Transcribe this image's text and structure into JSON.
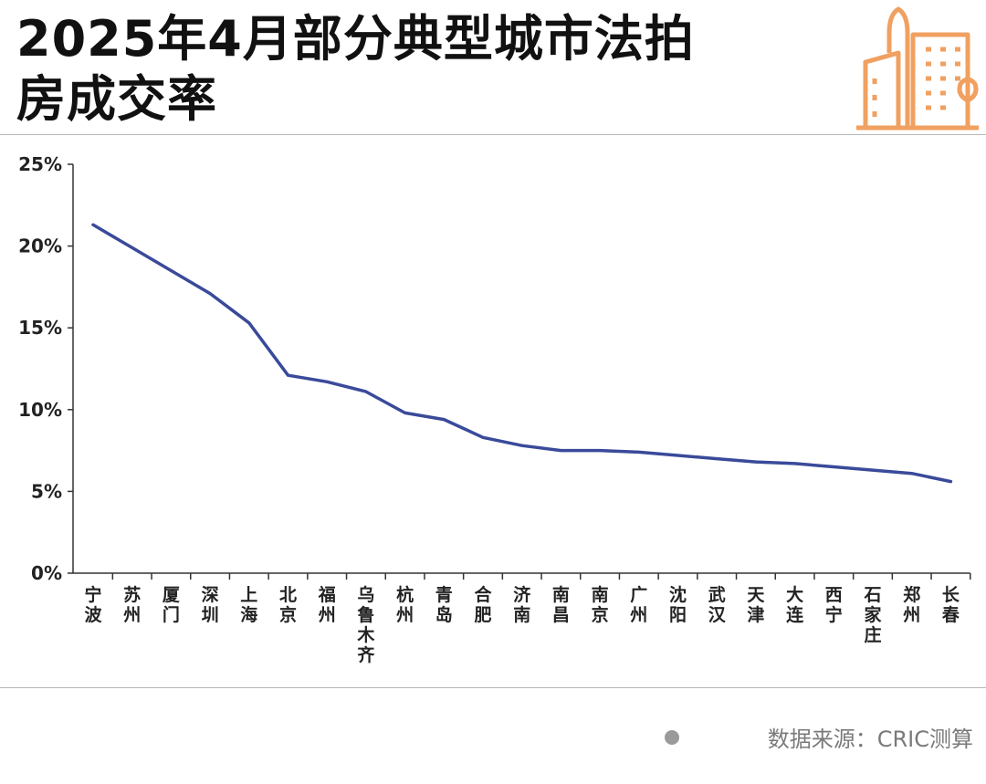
{
  "header": {
    "title_line1": "2025年4月部分典型城市法拍",
    "title_line2": "房成交率"
  },
  "logo_icon": "city-buildings-icon",
  "colors": {
    "line": "#3a4a9a",
    "logo": "#f0a060",
    "axis": "#333333"
  },
  "source": {
    "text": "数据来源：CRIC测算"
  },
  "chart_data": {
    "type": "line",
    "title": "2025年4月部分典型城市法拍房成交率",
    "categories": [
      "宁波",
      "苏州",
      "厦门",
      "深圳",
      "上海",
      "北京",
      "福州",
      "乌鲁木齐",
      "杭州",
      "青岛",
      "合肥",
      "济南",
      "南昌",
      "南京",
      "广州",
      "沈阳",
      "武汉",
      "天津",
      "大连",
      "西宁",
      "石家庄",
      "郑州",
      "长春"
    ],
    "series": [
      {
        "values": [
          21.3,
          19.9,
          18.5,
          17.1,
          15.3,
          12.1,
          11.7,
          11.1,
          9.8,
          9.4,
          8.3,
          7.8,
          7.5,
          7.5,
          7.4,
          7.2,
          7.0,
          6.8,
          6.7,
          6.5,
          6.3,
          6.1,
          5.6
        ]
      }
    ],
    "y_ticks": [
      "0%",
      "5%",
      "10%",
      "15%",
      "20%",
      "25%"
    ],
    "ylim": [
      0,
      25
    ],
    "ylabel": "",
    "xlabel": "",
    "grid": false,
    "legend": "none"
  }
}
